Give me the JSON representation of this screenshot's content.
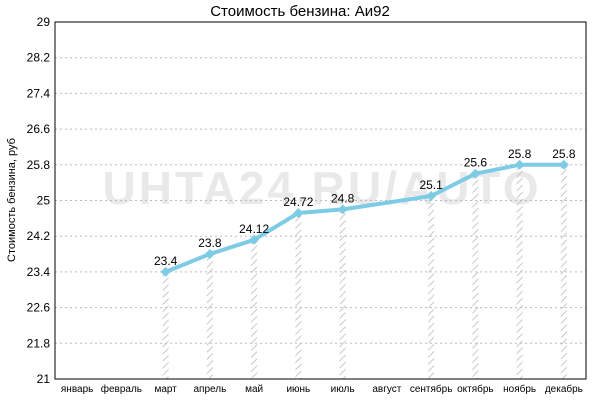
{
  "chart_data": {
    "type": "line",
    "title": "Стоимость бензина: Аи92",
    "ylabel": "Стоимость бензина, руб",
    "xlabel": "",
    "categories": [
      "январь",
      "февраль",
      "март",
      "апрель",
      "май",
      "июнь",
      "июль",
      "август",
      "сентябрь",
      "октябрь",
      "ноябрь",
      "декабрь"
    ],
    "values": [
      null,
      null,
      23.4,
      23.8,
      24.12,
      24.72,
      24.8,
      null,
      25.1,
      25.6,
      25.8,
      25.8
    ],
    "data_labels": [
      null,
      null,
      "23.4",
      "23.8",
      "24.12",
      "24.72",
      "24.8",
      null,
      "25.1",
      "25.6",
      "25.8",
      "25.8"
    ],
    "ylim": [
      21,
      29
    ],
    "yticks": [
      "21",
      "21.8",
      "22.6",
      "23.4",
      "24.2",
      "25",
      "25.8",
      "26.6",
      "27.4",
      "28.2",
      "29"
    ],
    "grid": true,
    "legend": "none",
    "watermark": "UHTA24.RU/AUTO",
    "colors": {
      "line": "#7ecbe6",
      "marker": "#7ecbe6",
      "grid": "#bbbbbb",
      "drop_hatch": "#bbbbbb",
      "watermark": "#e9e9e9"
    }
  }
}
